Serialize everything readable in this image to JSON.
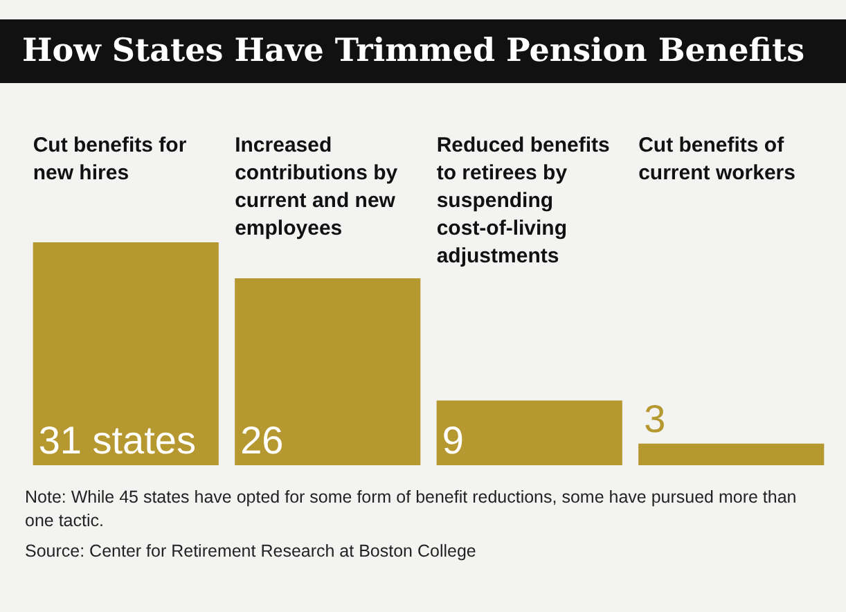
{
  "chart_data": {
    "type": "bar",
    "title": "How States Have Trimmed Pension Benefits",
    "categories": [
      "Cut benefits for new hires",
      "Increased contributions by current and new employees",
      "Reduced benefits to retirees by suspending cost-of-living adjustments",
      "Cut benefits of current workers"
    ],
    "values": [
      31,
      26,
      9,
      3
    ],
    "value_labels": [
      "31 states",
      "26",
      "9",
      "3"
    ],
    "color": "#b5982f",
    "annotations": [
      "Note: While 45 states have opted for some form of benefit reductions, some have pursued more than one tactic.",
      "Source: Center for Retirement Research at Boston College"
    ]
  }
}
